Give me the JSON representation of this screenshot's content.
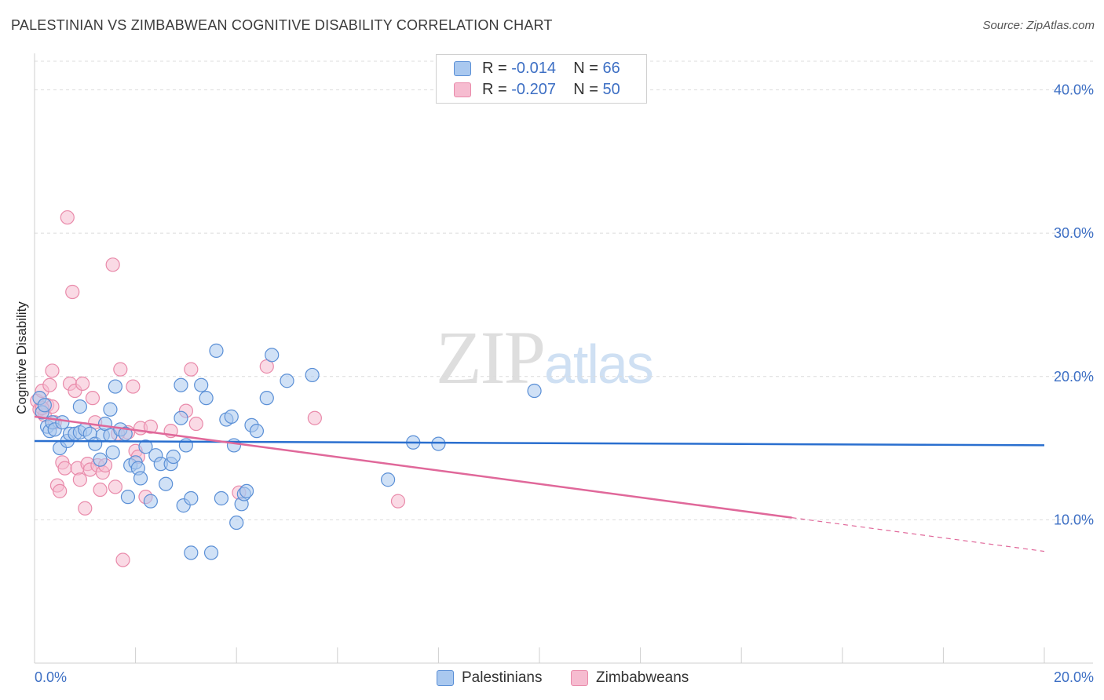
{
  "title": "PALESTINIAN VS ZIMBABWEAN COGNITIVE DISABILITY CORRELATION CHART",
  "source": "Source: ZipAtlas.com",
  "watermark": {
    "zip": "ZIP",
    "atlas": "atlas"
  },
  "legend": {
    "rows": [
      {
        "r_label": "R =",
        "r_value": "-0.014",
        "n_label": "N =",
        "n_value": "66"
      },
      {
        "r_label": "R =",
        "r_value": "-0.207",
        "n_label": "N =",
        "n_value": "50"
      }
    ]
  },
  "colors": {
    "palestinians_fill": "#a9c8ef",
    "palestinians_stroke": "#5a8fd6",
    "palestinians_line": "#2a6fcf",
    "zimbabweans_fill": "#f6bcd0",
    "zimbabweans_stroke": "#e98aaa",
    "zimbabweans_line": "#e0689a",
    "grid": "#dcdcdc",
    "tick_text": "#3d6fc4"
  },
  "chart_data": {
    "type": "scatter",
    "title": "PALESTINIAN VS ZIMBABWEAN COGNITIVE DISABILITY CORRELATION CHART",
    "xlabel": "",
    "ylabel": "Cognitive Disability",
    "xlim": [
      0,
      20
    ],
    "ylim": [
      0,
      42
    ],
    "x_tick_labels": [
      "0.0%",
      "20.0%"
    ],
    "y_ticks": [
      10,
      20,
      30,
      40
    ],
    "y_tick_labels": [
      "10.0%",
      "20.0%",
      "30.0%",
      "40.0%"
    ],
    "grid": true,
    "legend_position": "top-center",
    "series": [
      {
        "name": "Palestinians",
        "r": -0.014,
        "n": 66,
        "trend": {
          "x0": 0,
          "y0": 15.5,
          "x1": 20,
          "y1": 15.2,
          "solid_to": 20
        },
        "points": [
          [
            0.1,
            18.5
          ],
          [
            0.15,
            17.5
          ],
          [
            0.2,
            18.0
          ],
          [
            0.25,
            16.5
          ],
          [
            0.3,
            16.2
          ],
          [
            0.35,
            16.8
          ],
          [
            0.4,
            16.3
          ],
          [
            0.5,
            15.0
          ],
          [
            0.55,
            16.8
          ],
          [
            0.65,
            15.5
          ],
          [
            0.7,
            16.0
          ],
          [
            0.8,
            16.0
          ],
          [
            0.9,
            16.1
          ],
          [
            1.0,
            16.3
          ],
          [
            1.1,
            16.0
          ],
          [
            1.2,
            15.3
          ],
          [
            1.3,
            14.2
          ],
          [
            1.35,
            15.9
          ],
          [
            1.4,
            16.7
          ],
          [
            1.5,
            15.9
          ],
          [
            1.55,
            14.7
          ],
          [
            1.6,
            19.3
          ],
          [
            1.7,
            16.3
          ],
          [
            1.8,
            16.0
          ],
          [
            1.85,
            11.6
          ],
          [
            1.9,
            13.8
          ],
          [
            2.0,
            14.0
          ],
          [
            2.05,
            13.6
          ],
          [
            2.1,
            12.9
          ],
          [
            2.2,
            15.1
          ],
          [
            2.3,
            11.3
          ],
          [
            2.4,
            14.5
          ],
          [
            2.5,
            13.9
          ],
          [
            2.6,
            12.5
          ],
          [
            2.7,
            13.9
          ],
          [
            2.75,
            14.4
          ],
          [
            2.9,
            19.4
          ],
          [
            2.95,
            11.0
          ],
          [
            3.0,
            15.2
          ],
          [
            3.1,
            11.5
          ],
          [
            3.1,
            7.7
          ],
          [
            3.3,
            19.4
          ],
          [
            3.4,
            18.5
          ],
          [
            3.5,
            7.7
          ],
          [
            3.6,
            21.8
          ],
          [
            3.7,
            11.5
          ],
          [
            4.0,
            9.8
          ],
          [
            4.1,
            11.1
          ],
          [
            4.15,
            11.8
          ],
          [
            4.2,
            12.0
          ],
          [
            4.3,
            16.6
          ],
          [
            4.4,
            16.2
          ],
          [
            4.7,
            21.5
          ],
          [
            5.0,
            19.7
          ],
          [
            5.5,
            20.1
          ],
          [
            7.0,
            12.8
          ],
          [
            7.5,
            15.4
          ],
          [
            8.0,
            15.3
          ],
          [
            9.9,
            19.0
          ],
          [
            0.9,
            17.9
          ],
          [
            1.5,
            17.7
          ],
          [
            2.9,
            17.1
          ],
          [
            3.8,
            17.0
          ],
          [
            3.9,
            17.2
          ],
          [
            3.95,
            15.2
          ],
          [
            4.6,
            18.5
          ]
        ]
      },
      {
        "name": "Zimbabweans",
        "r": -0.207,
        "n": 50,
        "trend": {
          "x0": 0,
          "y0": 17.2,
          "x1": 20,
          "y1": 7.8,
          "solid_to": 15.0
        },
        "points": [
          [
            0.05,
            18.3
          ],
          [
            0.1,
            17.7
          ],
          [
            0.15,
            19.0
          ],
          [
            0.2,
            17.3
          ],
          [
            0.25,
            18.0
          ],
          [
            0.3,
            19.4
          ],
          [
            0.35,
            17.9
          ],
          [
            0.35,
            20.4
          ],
          [
            0.4,
            16.8
          ],
          [
            0.45,
            12.4
          ],
          [
            0.5,
            12.0
          ],
          [
            0.55,
            14.0
          ],
          [
            0.6,
            13.6
          ],
          [
            0.65,
            31.1
          ],
          [
            0.7,
            19.5
          ],
          [
            0.75,
            25.9
          ],
          [
            0.8,
            19.0
          ],
          [
            0.85,
            13.6
          ],
          [
            0.9,
            12.8
          ],
          [
            0.95,
            19.5
          ],
          [
            1.0,
            10.8
          ],
          [
            1.05,
            13.9
          ],
          [
            1.1,
            13.5
          ],
          [
            1.15,
            18.5
          ],
          [
            1.2,
            16.8
          ],
          [
            1.25,
            13.8
          ],
          [
            1.3,
            12.1
          ],
          [
            1.35,
            13.3
          ],
          [
            1.4,
            13.8
          ],
          [
            1.55,
            27.8
          ],
          [
            1.6,
            12.3
          ],
          [
            1.7,
            20.5
          ],
          [
            1.75,
            7.2
          ],
          [
            1.85,
            16.1
          ],
          [
            1.95,
            19.3
          ],
          [
            2.0,
            14.8
          ],
          [
            2.05,
            14.4
          ],
          [
            2.1,
            16.4
          ],
          [
            2.2,
            11.6
          ],
          [
            2.3,
            16.5
          ],
          [
            2.7,
            16.2
          ],
          [
            3.0,
            17.6
          ],
          [
            3.1,
            20.5
          ],
          [
            3.2,
            16.7
          ],
          [
            4.05,
            11.9
          ],
          [
            4.6,
            20.7
          ],
          [
            5.55,
            17.1
          ],
          [
            7.2,
            11.3
          ],
          [
            0.15,
            17.8
          ],
          [
            1.65,
            16.0
          ]
        ]
      }
    ]
  },
  "bottom_legend": [
    {
      "label": "Palestinians"
    },
    {
      "label": "Zimbabweans"
    }
  ]
}
